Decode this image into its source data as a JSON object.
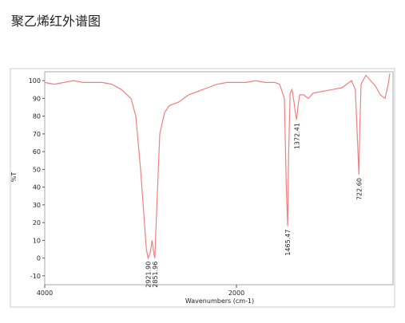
{
  "chart_data": {
    "type": "line",
    "title": "聚乙烯红外谱图",
    "xlabel": "Wavenumbers (cm-1)",
    "ylabel": "%T",
    "color": "#f08080",
    "grid": false,
    "xlim": [
      4000,
      400
    ],
    "xticks": [
      4000,
      2000
    ],
    "ylim": [
      -15,
      105
    ],
    "yticks": [
      -10,
      0,
      10,
      20,
      30,
      40,
      50,
      60,
      70,
      80,
      90,
      100
    ],
    "x": [
      4000,
      3900,
      3800,
      3700,
      3600,
      3500,
      3400,
      3300,
      3200,
      3100,
      3050,
      3000,
      2960,
      2940,
      2921.9,
      2900,
      2880,
      2860,
      2851.96,
      2830,
      2800,
      2750,
      2700,
      2600,
      2500,
      2400,
      2300,
      2200,
      2100,
      2000,
      1900,
      1800,
      1700,
      1600,
      1550,
      1500,
      1480,
      1465.47,
      1455,
      1440,
      1420,
      1400,
      1385,
      1372.41,
      1360,
      1340,
      1300,
      1250,
      1200,
      1100,
      1000,
      900,
      850,
      800,
      760,
      740,
      722.6,
      715,
      700,
      650,
      600,
      550,
      500,
      450,
      420,
      400
    ],
    "values": [
      99,
      98,
      99,
      100,
      99,
      99,
      99,
      98,
      95,
      90,
      80,
      50,
      20,
      5,
      0,
      3,
      10,
      2,
      0,
      30,
      70,
      82,
      86,
      88,
      92,
      94,
      96,
      98,
      99,
      99,
      99,
      100,
      99,
      99,
      98,
      90,
      40,
      18,
      60,
      93,
      95,
      88,
      82,
      78,
      85,
      92,
      92,
      90,
      93,
      94,
      95,
      96,
      98,
      100,
      95,
      70,
      47,
      70,
      98,
      103,
      100,
      97,
      92,
      90,
      97,
      104
    ],
    "annotations": [
      {
        "x": 2921.9,
        "text": "2921.90"
      },
      {
        "x": 2851.96,
        "text": "2851.96"
      },
      {
        "x": 1465.47,
        "text": "1465.47"
      },
      {
        "x": 1372.41,
        "text": "1372.41"
      },
      {
        "x": 722.6,
        "text": "722.60"
      }
    ]
  }
}
